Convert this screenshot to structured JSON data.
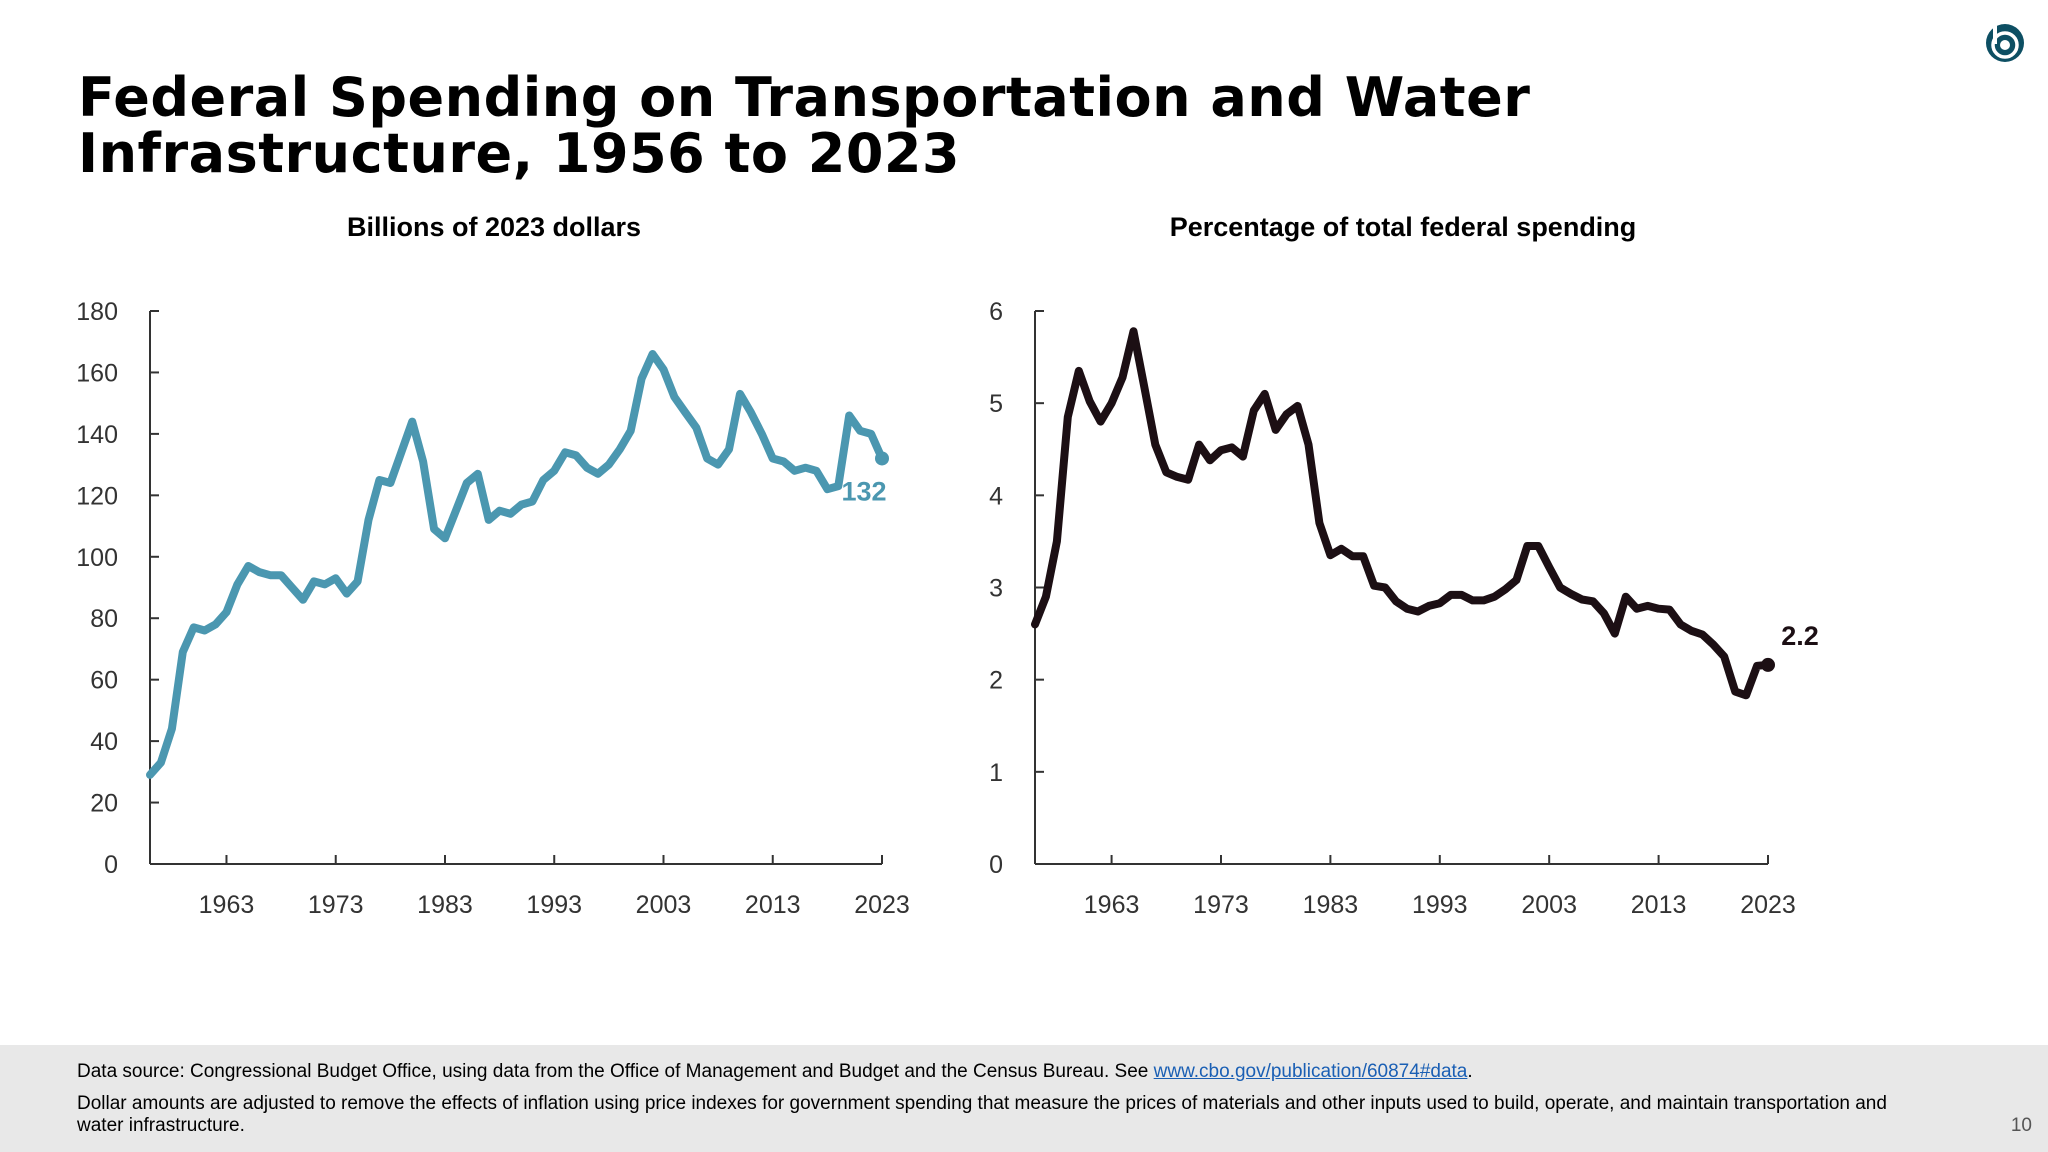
{
  "title": "Federal Spending on Transportation and Water Infrastructure, 1956 to 2023",
  "logo_icon": "cbo-logo-icon",
  "colors": {
    "left_series": "#4b97b0",
    "right_series": "#1c0f14",
    "axis": "#333333",
    "footer_bg": "#e8e8e8",
    "link": "#1a5fb4"
  },
  "chart_data": [
    {
      "type": "line",
      "title": "Billions of 2023 dollars",
      "xlabel": "",
      "ylabel": "",
      "xlim": [
        1956,
        2023
      ],
      "ylim": [
        0,
        180
      ],
      "xticks": [
        1963,
        1973,
        1983,
        1993,
        2003,
        2013,
        2023
      ],
      "yticks": [
        0,
        20,
        40,
        60,
        80,
        100,
        120,
        140,
        160,
        180
      ],
      "series": [
        {
          "name": "Billions of 2023 dollars",
          "x": [
            1956,
            1957,
            1958,
            1959,
            1960,
            1961,
            1962,
            1963,
            1964,
            1965,
            1966,
            1967,
            1968,
            1969,
            1970,
            1971,
            1972,
            1973,
            1974,
            1975,
            1976,
            1977,
            1978,
            1979,
            1980,
            1981,
            1982,
            1983,
            1984,
            1985,
            1986,
            1987,
            1988,
            1989,
            1990,
            1991,
            1992,
            1993,
            1994,
            1995,
            1996,
            1997,
            1998,
            1999,
            2000,
            2001,
            2002,
            2003,
            2004,
            2005,
            2006,
            2007,
            2008,
            2009,
            2010,
            2011,
            2012,
            2013,
            2014,
            2015,
            2016,
            2017,
            2018,
            2019,
            2020,
            2021,
            2022,
            2023
          ],
          "values": [
            29,
            33,
            44,
            69,
            77,
            76,
            78,
            82,
            91,
            97,
            95,
            94,
            94,
            90,
            86,
            92,
            91,
            93,
            88,
            92,
            112,
            125,
            124,
            134,
            144,
            131,
            109,
            106,
            115,
            124,
            127,
            112,
            115,
            114,
            117,
            118,
            125,
            128,
            134,
            133,
            129,
            127,
            130,
            135,
            141,
            158,
            166,
            161,
            152,
            147,
            142,
            132,
            130,
            135,
            153,
            147,
            140,
            132,
            131,
            128,
            129,
            128,
            122,
            123,
            146,
            141,
            140,
            132
          ]
        }
      ],
      "end_label": "132"
    },
    {
      "type": "line",
      "title": "Percentage of total federal spending",
      "xlabel": "",
      "ylabel": "",
      "xlim": [
        1956,
        2023
      ],
      "ylim": [
        0,
        6
      ],
      "xticks": [
        1963,
        1973,
        1983,
        1993,
        2003,
        2013,
        2023
      ],
      "yticks": [
        0,
        1,
        2,
        3,
        4,
        5,
        6
      ],
      "series": [
        {
          "name": "Percentage of total federal spending",
          "x": [
            1956,
            1957,
            1958,
            1959,
            1960,
            1961,
            1962,
            1963,
            1964,
            1965,
            1966,
            1967,
            1968,
            1969,
            1970,
            1971,
            1972,
            1973,
            1974,
            1975,
            1976,
            1977,
            1978,
            1979,
            1980,
            1981,
            1982,
            1983,
            1984,
            1985,
            1986,
            1987,
            1988,
            1989,
            1990,
            1991,
            1992,
            1993,
            1994,
            1995,
            1996,
            1997,
            1998,
            1999,
            2000,
            2001,
            2002,
            2003,
            2004,
            2005,
            2006,
            2007,
            2008,
            2009,
            2010,
            2011,
            2012,
            2013,
            2014,
            2015,
            2016,
            2017,
            2018,
            2019,
            2020,
            2021,
            2022,
            2023
          ],
          "values": [
            2.6,
            2.9,
            3.5,
            4.85,
            5.35,
            5.02,
            4.8,
            5.0,
            5.28,
            5.78,
            5.17,
            4.55,
            4.25,
            4.2,
            4.17,
            4.55,
            4.38,
            4.49,
            4.52,
            4.42,
            4.92,
            5.1,
            4.71,
            4.88,
            4.97,
            4.55,
            3.7,
            3.35,
            3.42,
            3.34,
            3.34,
            3.02,
            3.0,
            2.85,
            2.77,
            2.74,
            2.8,
            2.83,
            2.92,
            2.92,
            2.86,
            2.86,
            2.9,
            2.98,
            3.08,
            3.45,
            3.45,
            3.22,
            3.0,
            2.93,
            2.87,
            2.85,
            2.72,
            2.5,
            2.9,
            2.77,
            2.8,
            2.77,
            2.76,
            2.6,
            2.53,
            2.49,
            2.38,
            2.25,
            1.87,
            1.83,
            2.15,
            2.16
          ]
        }
      ],
      "end_label": "2.2"
    }
  ],
  "footer": {
    "source_prefix": "Data source: Congressional Budget Office, using data from the Office of Management and Budget and the Census Bureau. See ",
    "source_link": "www.cbo.gov/publication/60874#data",
    "source_suffix": ".",
    "note": "Dollar amounts are adjusted to remove the effects of inflation using price indexes for government spending that measure the prices of materials and other inputs used to build, operate, and maintain transportation and water infrastructure.",
    "page_number": "10"
  }
}
